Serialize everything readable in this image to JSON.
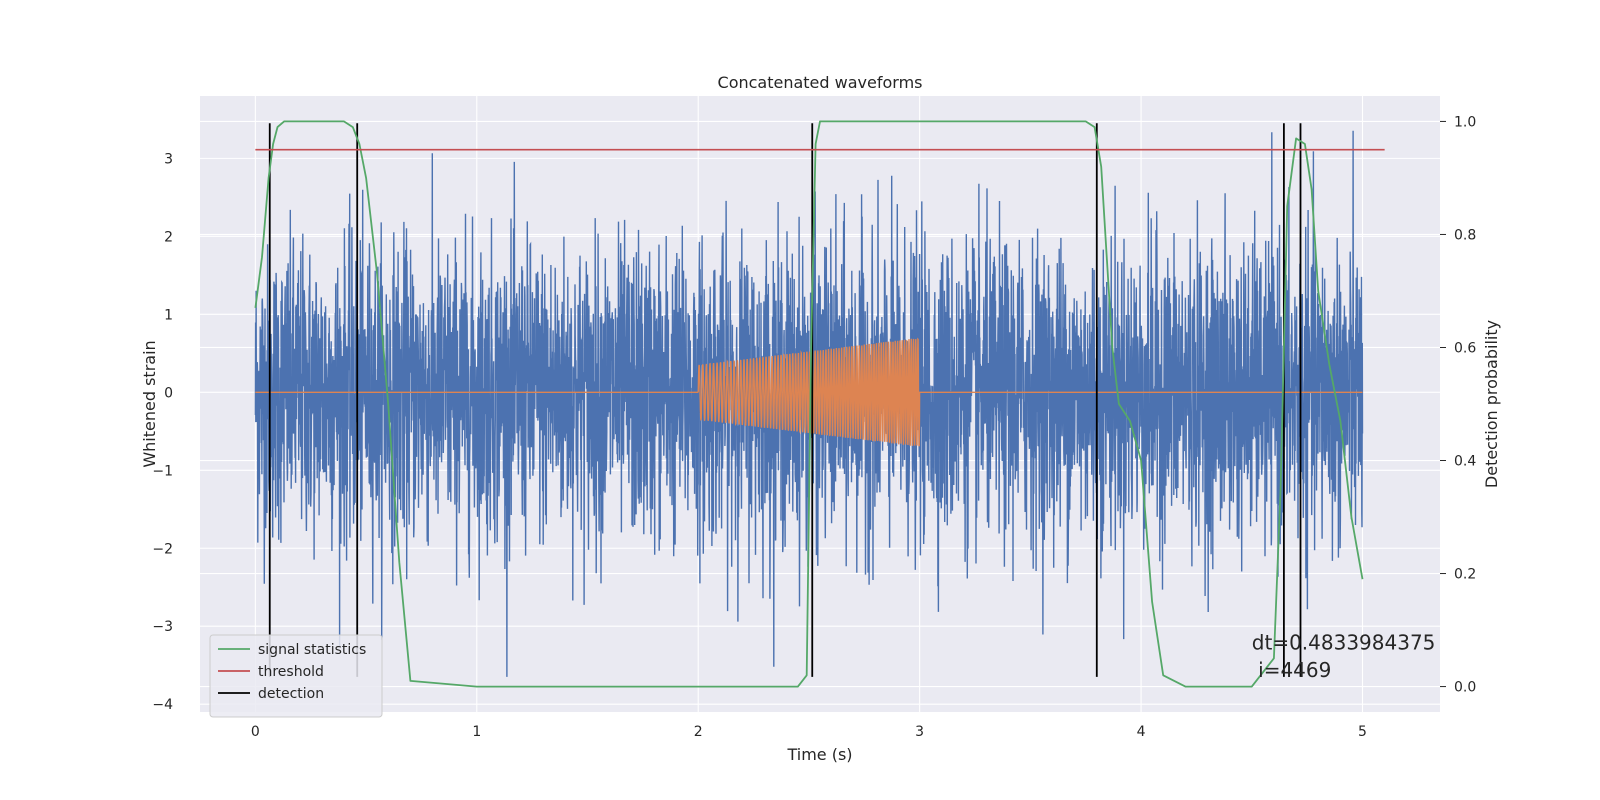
{
  "chart_data": {
    "type": "line",
    "title": "Concatenated waveforms",
    "xlabel": "Time (s)",
    "ylabel": "Whitened strain",
    "y2label": "Detection probability",
    "xlim": [
      -0.25,
      5.35
    ],
    "ylim": [
      -4.1,
      3.8
    ],
    "y2lim": [
      -0.045,
      1.045
    ],
    "xticks": [
      0,
      1,
      2,
      3,
      4,
      5
    ],
    "xtick_labels": [
      "0",
      "1",
      "2",
      "3",
      "4",
      "5"
    ],
    "yticks": [
      -4,
      -3,
      -2,
      -1,
      0,
      1,
      2,
      3
    ],
    "ytick_labels": [
      "−4",
      "−3",
      "−2",
      "−1",
      "0",
      "1",
      "2",
      "3"
    ],
    "y2ticks": [
      0.0,
      0.2,
      0.4,
      0.6,
      0.8,
      1.0
    ],
    "y2tick_labels": [
      "0.0",
      "0.2",
      "0.4",
      "0.6",
      "0.8",
      "1.0"
    ],
    "grid": true,
    "legend_position": "lower-left",
    "series": [
      {
        "name": "",
        "kind": "noisy-strain",
        "axis": "left",
        "color": "#4c72b0",
        "x_range": [
          0,
          5
        ],
        "typical_amplitude": 1.3,
        "peak_range": [
          -3.65,
          3.45
        ]
      },
      {
        "name": "",
        "kind": "injected-chirp",
        "axis": "left",
        "color": "#dd8452",
        "baseline": 0,
        "x_range": [
          0,
          5
        ],
        "chirp_x_range": [
          2,
          3
        ],
        "chirp_amplitude_start": 0.35,
        "chirp_amplitude_end": 0.7
      },
      {
        "name": "signal statistics",
        "axis": "right",
        "color": "#55a868",
        "x": [
          0.0,
          0.03,
          0.06,
          0.08,
          0.1,
          0.13,
          0.18,
          0.3,
          0.4,
          0.44,
          0.47,
          0.5,
          0.55,
          0.6,
          0.65,
          0.7,
          1.0,
          2.0,
          2.45,
          2.49,
          2.51,
          2.53,
          2.55,
          2.6,
          3.0,
          3.75,
          3.79,
          3.82,
          3.87,
          3.9,
          3.95,
          4.0,
          4.05,
          4.1,
          4.2,
          4.5,
          4.6,
          4.63,
          4.66,
          4.7,
          4.74,
          4.77,
          4.8,
          4.85,
          4.9,
          4.95,
          5.0
        ],
        "y": [
          0.67,
          0.76,
          0.9,
          0.96,
          0.99,
          1.0,
          1.0,
          1.0,
          1.0,
          0.99,
          0.96,
          0.9,
          0.73,
          0.5,
          0.22,
          0.01,
          0.0,
          0.0,
          0.0,
          0.02,
          0.6,
          0.96,
          1.0,
          1.0,
          1.0,
          1.0,
          0.99,
          0.92,
          0.6,
          0.5,
          0.47,
          0.4,
          0.15,
          0.02,
          0.0,
          0.0,
          0.05,
          0.35,
          0.85,
          0.97,
          0.96,
          0.88,
          0.7,
          0.57,
          0.47,
          0.3,
          0.19
        ]
      },
      {
        "name": "threshold",
        "axis": "right",
        "color": "#c44e52",
        "x": [
          0.0,
          5.1
        ],
        "y": [
          0.95,
          0.95
        ]
      },
      {
        "name": "detection",
        "kind": "vertical-lines",
        "axis": "left",
        "color": "#000000",
        "x": [
          0.065,
          0.46,
          2.515,
          3.8,
          4.645,
          4.72
        ],
        "y_range": [
          -3.65,
          3.45
        ]
      }
    ],
    "annotations": [
      {
        "text": "dt=0.4833984375",
        "x": 4.5,
        "y": -3.3
      },
      {
        "text": " i=4469",
        "x": 4.5,
        "y": -3.65
      }
    ]
  }
}
